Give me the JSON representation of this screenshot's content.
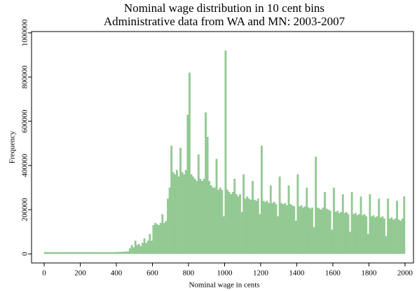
{
  "chart_data": {
    "type": "histogram",
    "title": "Nominal wage distribution in 10 cent bins",
    "subtitle": "Administrative data from WA and MN: 2003-2007",
    "x_label": "Nominal wage in cents",
    "y_label": "Frequency",
    "color": "#93c993",
    "bins": [
      0,
      10,
      20,
      30,
      40,
      50,
      60,
      70,
      80,
      90,
      100,
      110,
      120,
      130,
      140,
      150,
      160,
      170,
      180,
      190,
      200,
      210,
      220,
      230,
      240,
      250,
      260,
      270,
      280,
      290,
      300,
      310,
      320,
      330,
      340,
      350,
      360,
      370,
      380,
      390,
      400,
      410,
      420,
      430,
      440,
      450,
      460,
      470,
      480,
      490,
      500,
      510,
      520,
      530,
      540,
      550,
      560,
      570,
      580,
      590,
      600,
      610,
      620,
      630,
      640,
      650,
      660,
      670,
      680,
      690,
      700,
      710,
      720,
      730,
      740,
      750,
      760,
      770,
      780,
      790,
      800,
      810,
      820,
      830,
      840,
      850,
      860,
      870,
      880,
      890,
      900,
      910,
      920,
      930,
      940,
      950,
      960,
      970,
      980,
      990,
      1000,
      1010,
      1020,
      1030,
      1040,
      1050,
      1060,
      1070,
      1080,
      1090,
      1100,
      1110,
      1120,
      1130,
      1140,
      1150,
      1160,
      1170,
      1180,
      1190,
      1200,
      1210,
      1220,
      1230,
      1240,
      1250,
      1260,
      1270,
      1280,
      1290,
      1300,
      1310,
      1320,
      1330,
      1340,
      1350,
      1360,
      1370,
      1380,
      1390,
      1400,
      1410,
      1420,
      1430,
      1440,
      1450,
      1460,
      1470,
      1480,
      1490,
      1500,
      1510,
      1520,
      1530,
      1540,
      1550,
      1560,
      1570,
      1580,
      1590,
      1600,
      1610,
      1620,
      1630,
      1640,
      1650,
      1660,
      1670,
      1680,
      1690,
      1700,
      1710,
      1720,
      1730,
      1740,
      1750,
      1760,
      1770,
      1780,
      1790,
      1800,
      1810,
      1820,
      1830,
      1840,
      1850,
      1860,
      1870,
      1880,
      1890,
      1900,
      1910,
      1920,
      1930,
      1940,
      1950,
      1960,
      1970,
      1980,
      1990,
      2000
    ],
    "counts": [
      9000,
      8000,
      8000,
      8000,
      8000,
      8000,
      8000,
      8000,
      8000,
      8000,
      8000,
      8000,
      8000,
      8000,
      8000,
      8000,
      8000,
      8000,
      8000,
      8000,
      8000,
      8000,
      8000,
      8000,
      8000,
      8000,
      8000,
      8000,
      8000,
      8000,
      8000,
      8000,
      8000,
      8000,
      8000,
      8000,
      8000,
      8000,
      8000,
      8000,
      9000,
      9000,
      9000,
      10000,
      10000,
      11000,
      12000,
      25000,
      40000,
      30000,
      60000,
      40000,
      45000,
      35000,
      50000,
      70000,
      50000,
      60000,
      90000,
      60000,
      130000,
      140000,
      135000,
      130000,
      140000,
      180000,
      140000,
      150000,
      250000,
      300000,
      490000,
      370000,
      360000,
      380000,
      350000,
      480000,
      370000,
      360000,
      380000,
      630000,
      820000,
      360000,
      350000,
      340000,
      330000,
      450000,
      340000,
      330000,
      340000,
      640000,
      530000,
      330000,
      310000,
      300000,
      300000,
      430000,
      290000,
      300000,
      290000,
      170000,
      920000,
      290000,
      280000,
      270000,
      280000,
      340000,
      270000,
      260000,
      270000,
      190000,
      360000,
      250000,
      260000,
      250000,
      245000,
      330000,
      245000,
      240000,
      250000,
      180000,
      490000,
      240000,
      235000,
      240000,
      230000,
      310000,
      230000,
      235000,
      225000,
      170000,
      350000,
      230000,
      225000,
      230000,
      220000,
      310000,
      225000,
      220000,
      215000,
      150000,
      360000,
      215000,
      220000,
      210000,
      215000,
      300000,
      210000,
      205000,
      210000,
      120000,
      440000,
      210000,
      205000,
      200000,
      210000,
      280000,
      205000,
      200000,
      195000,
      110000,
      300000,
      190000,
      195000,
      185000,
      190000,
      270000,
      185000,
      190000,
      180000,
      100000,
      280000,
      180000,
      185000,
      175000,
      180000,
      260000,
      175000,
      180000,
      170000,
      90000,
      270000,
      170000,
      175000,
      165000,
      170000,
      250000,
      165000,
      170000,
      160000,
      80000,
      250000,
      160000,
      165000,
      155000,
      160000,
      240000,
      155000,
      150000,
      160000,
      260000
    ],
    "xlim": [
      -70,
      2047
    ],
    "ylim": [
      -41000,
      1006000
    ],
    "xticks": [
      0,
      200,
      400,
      600,
      800,
      1000,
      1200,
      1400,
      1600,
      1800,
      2000
    ],
    "yticks": [
      0,
      200000,
      400000,
      600000,
      800000,
      1000000
    ]
  }
}
